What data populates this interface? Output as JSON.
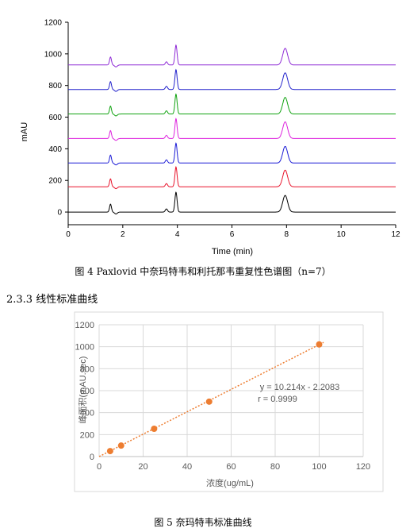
{
  "figure4": {
    "caption": "图 4 Paxlovid 中奈玛特韦和利托那韦重复性色谱图（n=7）"
  },
  "section_heading": "2.3.3  线性标准曲线",
  "figure5": {
    "caption": "图 5  奈玛特韦标准曲线"
  },
  "chart_data": [
    {
      "type": "line",
      "title": "",
      "xlabel": "Time (min)",
      "ylabel": "mAU",
      "xlim": [
        0,
        12
      ],
      "ylim": [
        -80,
        1200
      ],
      "x_ticks": [
        0,
        2,
        4,
        6,
        8,
        10,
        12
      ],
      "y_ticks": [
        0,
        200,
        400,
        600,
        800,
        1000,
        1200
      ],
      "grid": false,
      "legend": "none",
      "baseline_offsets": [
        0,
        160,
        310,
        465,
        620,
        775,
        930
      ],
      "peaks": [
        {
          "time": 1.55,
          "height": 50
        },
        {
          "time": 3.6,
          "height": 20
        },
        {
          "time": 3.95,
          "height": 125
        },
        {
          "time": 7.95,
          "height": 105
        }
      ],
      "series_colors": [
        "#000000",
        "#e8132b",
        "#1c1cd6",
        "#dd22dd",
        "#11a311",
        "#2222cc",
        "#8e2ad6"
      ]
    },
    {
      "type": "scatter",
      "title": "",
      "xlabel": "浓度(ug/mL)",
      "ylabel": "峰面积(mAU.sec)",
      "xlim": [
        0,
        120
      ],
      "ylim": [
        0,
        1200
      ],
      "x_ticks": [
        0,
        20,
        40,
        60,
        80,
        100,
        120
      ],
      "y_ticks": [
        0,
        200,
        400,
        600,
        800,
        1000,
        1200
      ],
      "grid": true,
      "legend": "none",
      "points": [
        {
          "x": 5,
          "y": 50
        },
        {
          "x": 10,
          "y": 100
        },
        {
          "x": 25,
          "y": 253
        },
        {
          "x": 50,
          "y": 500
        },
        {
          "x": 100,
          "y": 1021
        }
      ],
      "trendline": {
        "slope": 10.214,
        "intercept": -2.2083
      },
      "annotation": {
        "equation": "y = 10.214x - 2.2083",
        "r": "r = 0.9999"
      },
      "marker_color": "#ed7d31"
    }
  ]
}
